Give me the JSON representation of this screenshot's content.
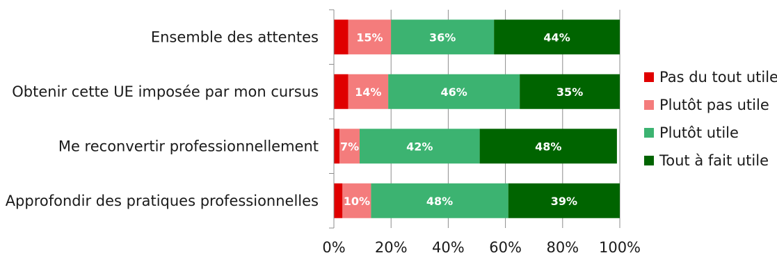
{
  "chart_data": {
    "type": "bar",
    "orientation": "horizontal",
    "stacked": true,
    "normalized": true,
    "categories": [
      "Ensemble des attentes",
      "Obtenir cette UE imposée par mon cursus",
      "Me reconvertir professionnellement",
      "Approfondir des pratiques professionnelles"
    ],
    "series": [
      {
        "name": "Pas du tout utile",
        "color": "#e00000",
        "values": [
          5,
          5,
          2,
          3
        ],
        "labels": [
          "",
          "",
          "",
          ""
        ]
      },
      {
        "name": "Plutôt pas utile",
        "color": "#f47c7c",
        "values": [
          15,
          14,
          7,
          10
        ],
        "labels": [
          "15%",
          "14%",
          "7%",
          "10%"
        ]
      },
      {
        "name": "Plutôt utile",
        "color": "#3cb371",
        "values": [
          36,
          46,
          42,
          48
        ],
        "labels": [
          "36%",
          "46%",
          "42%",
          "48%"
        ]
      },
      {
        "name": "Tout à fait utile",
        "color": "#006400",
        "values": [
          44,
          35,
          48,
          39
        ],
        "labels": [
          "44%",
          "35%",
          "48%",
          "39%"
        ]
      }
    ],
    "xlim": [
      0,
      100
    ],
    "xticks": [
      0,
      20,
      40,
      60,
      80,
      100
    ],
    "xtick_labels": [
      "0%",
      "20%",
      "40%",
      "60%",
      "80%",
      "100%"
    ],
    "grid": true,
    "legend_position": "right",
    "title": "",
    "xlabel": "",
    "ylabel": ""
  }
}
